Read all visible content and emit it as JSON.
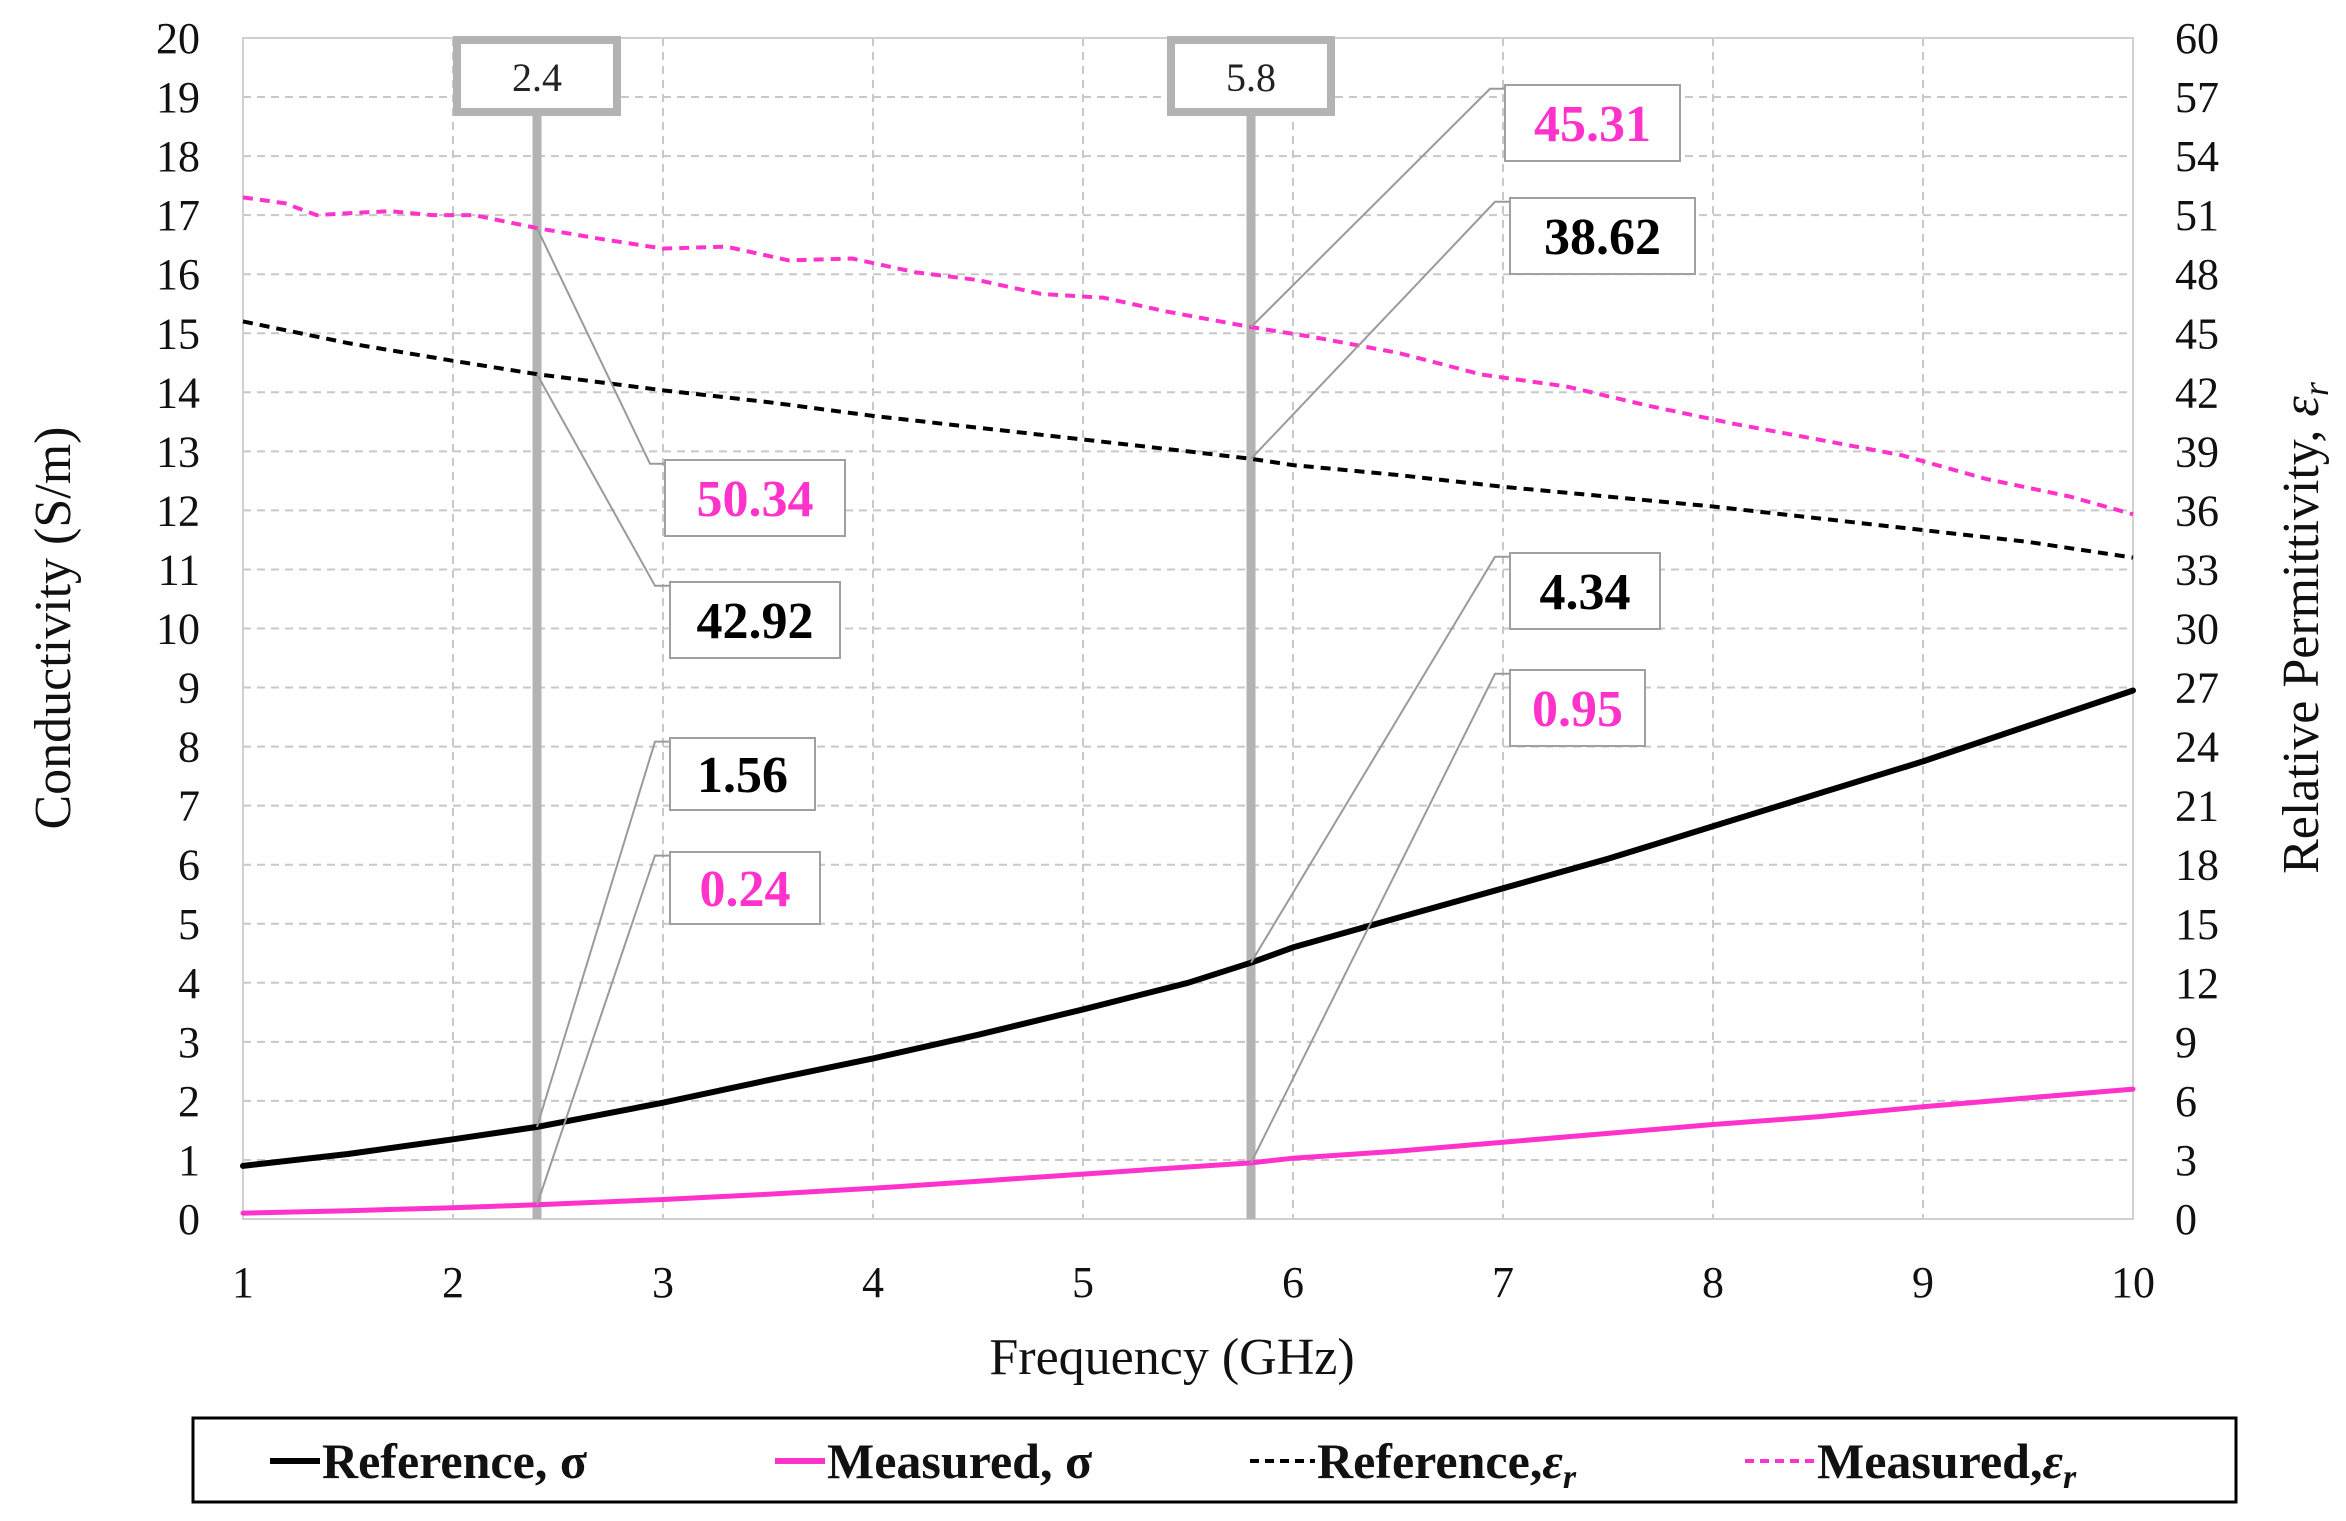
{
  "chart_data": {
    "type": "line",
    "xlabel": "Frequency (GHz)",
    "ylabel_left": "Conductivity (S/m)",
    "ylabel_right_prefix": "Relative Permittivity, ",
    "ylabel_right_symbol": "ε",
    "ylabel_right_sub": "r",
    "xlim": [
      1,
      10
    ],
    "ylim_left": [
      0,
      20
    ],
    "ylim_right": [
      0,
      60
    ],
    "x_ticks": [
      1,
      2,
      3,
      4,
      5,
      6,
      7,
      8,
      9,
      10
    ],
    "y_left_ticks": [
      0,
      1,
      2,
      3,
      4,
      5,
      6,
      7,
      8,
      9,
      10,
      11,
      12,
      13,
      14,
      15,
      16,
      17,
      18,
      19,
      20
    ],
    "y_right_ticks": [
      0,
      3,
      6,
      9,
      12,
      15,
      18,
      21,
      24,
      27,
      30,
      33,
      36,
      39,
      42,
      45,
      48,
      51,
      54,
      57,
      60
    ],
    "grid": true,
    "series": [
      {
        "name": "Reference, σ",
        "axis": "left",
        "style": "solid",
        "color": "#000000",
        "x": [
          1,
          1.5,
          2,
          2.4,
          3,
          3.5,
          4,
          4.5,
          5,
          5.5,
          5.8,
          6,
          6.5,
          7,
          7.5,
          8,
          8.5,
          9,
          9.5,
          10
        ],
        "values": [
          0.9,
          1.1,
          1.35,
          1.56,
          1.97,
          2.35,
          2.72,
          3.12,
          3.55,
          4.0,
          4.34,
          4.6,
          5.1,
          5.6,
          6.1,
          6.65,
          7.2,
          7.75,
          8.35,
          8.95
        ]
      },
      {
        "name": "Measured, σ",
        "axis": "left",
        "style": "solid",
        "color": "#ff33cc",
        "x": [
          1,
          1.5,
          2,
          2.4,
          3,
          3.5,
          4,
          4.5,
          5,
          5.5,
          5.8,
          6,
          6.5,
          7,
          7.5,
          8,
          8.5,
          9,
          9.5,
          10
        ],
        "values": [
          0.1,
          0.14,
          0.19,
          0.24,
          0.33,
          0.42,
          0.52,
          0.64,
          0.76,
          0.88,
          0.95,
          1.03,
          1.15,
          1.3,
          1.45,
          1.6,
          1.73,
          1.9,
          2.05,
          2.2
        ]
      },
      {
        "name": "Reference, εr",
        "axis": "right",
        "style": "dashed",
        "color": "#000000",
        "x": [
          1,
          1.5,
          2,
          2.4,
          3,
          3.5,
          4,
          4.5,
          5,
          5.5,
          5.8,
          6,
          6.5,
          7,
          7.5,
          8,
          8.5,
          9,
          9.5,
          10
        ],
        "values": [
          45.6,
          44.5,
          43.6,
          42.92,
          42.1,
          41.5,
          40.8,
          40.2,
          39.6,
          39.0,
          38.62,
          38.3,
          37.8,
          37.2,
          36.7,
          36.2,
          35.6,
          35.0,
          34.4,
          33.6
        ]
      },
      {
        "name": "Measured, εr",
        "axis": "right",
        "style": "dashed",
        "color": "#ff33cc",
        "x": [
          1,
          1.2,
          1.35,
          1.5,
          1.7,
          1.9,
          2.1,
          2.4,
          2.7,
          3,
          3.3,
          3.6,
          3.9,
          4.2,
          4.5,
          4.8,
          5.1,
          5.4,
          5.8,
          6.1,
          6.5,
          6.9,
          7.3,
          7.7,
          8.1,
          8.5,
          8.9,
          9.3,
          9.7,
          10
        ],
        "values": [
          51.9,
          51.6,
          51.0,
          51.1,
          51.2,
          51.0,
          51.0,
          50.34,
          49.8,
          49.3,
          49.4,
          48.7,
          48.8,
          48.1,
          47.7,
          47.0,
          46.8,
          46.1,
          45.31,
          44.8,
          44.0,
          42.9,
          42.3,
          41.3,
          40.4,
          39.6,
          38.8,
          37.6,
          36.7,
          35.8
        ]
      }
    ],
    "markers": [
      {
        "x": 2.4,
        "label": "2.4"
      },
      {
        "x": 5.8,
        "label": "5.8"
      }
    ],
    "annotations": [
      {
        "text": "50.34",
        "series": "Measured, εr",
        "x": 2.4,
        "y": 50.34,
        "axis": "right",
        "color": "#ff33cc"
      },
      {
        "text": "42.92",
        "series": "Reference, εr",
        "x": 2.4,
        "y": 42.92,
        "axis": "right",
        "color": "#000000"
      },
      {
        "text": "1.56",
        "series": "Reference, σ",
        "x": 2.4,
        "y": 1.56,
        "axis": "left",
        "color": "#000000"
      },
      {
        "text": "0.24",
        "series": "Measured, σ",
        "x": 2.4,
        "y": 0.24,
        "axis": "left",
        "color": "#ff33cc"
      },
      {
        "text": "45.31",
        "series": "Measured, εr",
        "x": 5.8,
        "y": 45.31,
        "axis": "right",
        "color": "#ff33cc"
      },
      {
        "text": "38.62",
        "series": "Reference, εr",
        "x": 5.8,
        "y": 38.62,
        "axis": "right",
        "color": "#000000"
      },
      {
        "text": "4.34",
        "series": "Reference, σ",
        "x": 5.8,
        "y": 4.34,
        "axis": "left",
        "color": "#000000"
      },
      {
        "text": "0.95",
        "series": "Measured, σ",
        "x": 5.8,
        "y": 0.95,
        "axis": "left",
        "color": "#ff33cc"
      }
    ],
    "legend": {
      "placement": "bottom",
      "entries": [
        {
          "label": "Reference, σ",
          "style": "solid",
          "color": "#000000"
        },
        {
          "label": "Measured, σ",
          "style": "solid",
          "color": "#ff33cc"
        },
        {
          "label": "Reference,",
          "symbol": "ε",
          "sub": "r",
          "style": "dashed",
          "color": "#000000"
        },
        {
          "label": "Measured,",
          "symbol": "ε",
          "sub": "r",
          "style": "dashed",
          "color": "#ff33cc"
        }
      ]
    }
  }
}
